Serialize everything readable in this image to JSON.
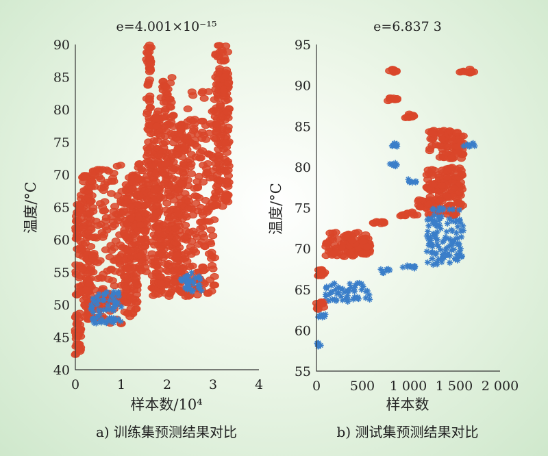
{
  "captions": [
    "a) 训练集预测结果对比",
    "b) 测试集预测结果对比"
  ],
  "colors": {
    "predicted": "#d9462a",
    "actual": "#3a7ec9"
  },
  "chart_data": [
    {
      "type": "scatter",
      "title": "e=4.001×10⁻¹⁵",
      "xlabel": "样本数/10⁴",
      "ylabel": "温度/°C",
      "xlim": [
        0,
        4
      ],
      "ylim": [
        40,
        90
      ],
      "xticks": [
        0,
        1,
        2,
        3,
        4
      ],
      "yticks": [
        40,
        45,
        50,
        55,
        60,
        65,
        70,
        75,
        80,
        85,
        90
      ],
      "xtick_labels": [
        "0",
        "1",
        "2",
        "3",
        "4"
      ],
      "ytick_labels": [
        "40",
        "45",
        "50",
        "55",
        "60",
        "65",
        "70",
        "75",
        "80",
        "85",
        "90"
      ],
      "series": [
        {
          "marker": "circle",
          "color": "#d9462a",
          "clusters": [
            {
              "x": [
                0,
                0.12
              ],
              "y": [
                42,
                67
              ]
            },
            {
              "x": [
                0.12,
                0.35
              ],
              "y": [
                47,
                70
              ]
            },
            {
              "x": [
                0.35,
                1.05
              ],
              "y": [
                47,
                71.5
              ]
            },
            {
              "x": [
                1.05,
                1.35
              ],
              "y": [
                48,
                70
              ]
            },
            {
              "x": [
                1.35,
                1.55
              ],
              "y": [
                55,
                72
              ]
            },
            {
              "x": [
                1.55,
                1.65
              ],
              "y": [
                66,
                90
              ]
            },
            {
              "x": [
                1.65,
                1.85
              ],
              "y": [
                51,
                80
              ]
            },
            {
              "x": [
                1.85,
                2.15
              ],
              "y": [
                51,
                85
              ]
            },
            {
              "x": [
                2.15,
                2.45
              ],
              "y": [
                51,
                78
              ]
            },
            {
              "x": [
                2.45,
                3.05
              ],
              "y": [
                51,
                83
              ]
            },
            {
              "x": [
                3.05,
                3.35
              ],
              "y": [
                65,
                90
              ]
            }
          ]
        },
        {
          "marker": "star",
          "color": "#3a7ec9",
          "clusters": [
            {
              "x": [
                0.3,
                1.0
              ],
              "y": [
                47,
                52
              ]
            },
            {
              "x": [
                2.3,
                2.8
              ],
              "y": [
                52,
                55
              ]
            }
          ]
        }
      ]
    },
    {
      "type": "scatter",
      "title": "e=6.837 3",
      "xlabel": "样本数",
      "ylabel": "温度/°C",
      "xlim": [
        0,
        2000
      ],
      "ylim": [
        55,
        95
      ],
      "xticks": [
        0,
        500,
        1000,
        1500,
        2000
      ],
      "yticks": [
        55,
        60,
        65,
        70,
        75,
        80,
        85,
        90,
        95
      ],
      "xtick_labels": [
        "0",
        "500",
        "1 000",
        "1 500",
        "2 000"
      ],
      "ytick_labels": [
        "55",
        "60",
        "65",
        "70",
        "75",
        "80",
        "85",
        "90",
        "95"
      ],
      "series": [
        {
          "marker": "circle",
          "color": "#d9462a",
          "clusters": [
            {
              "x": [
                0,
                90
              ],
              "y": [
                66.5,
                67.5
              ]
            },
            {
              "x": [
                0,
                80
              ],
              "y": [
                62.5,
                63.5
              ]
            },
            {
              "x": [
                100,
                580
              ],
              "y": [
                69,
                72
              ]
            },
            {
              "x": [
                360,
                600
              ],
              "y": [
                70,
                71
              ]
            },
            {
              "x": [
                620,
                760
              ],
              "y": [
                73,
                73.5
              ]
            },
            {
              "x": [
                780,
                880
              ],
              "y": [
                91.5,
                92
              ]
            },
            {
              "x": [
                780,
                880
              ],
              "y": [
                88,
                88.5
              ]
            },
            {
              "x": [
                900,
                1100
              ],
              "y": [
                74,
                74.5
              ]
            },
            {
              "x": [
                960,
                1060
              ],
              "y": [
                86,
                86.5
              ]
            },
            {
              "x": [
                1100,
                1200
              ],
              "y": [
                75,
                76
              ]
            },
            {
              "x": [
                1200,
                1600
              ],
              "y": [
                74,
                80
              ]
            },
            {
              "x": [
                1230,
                1600
              ],
              "y": [
                81,
                84.5
              ]
            },
            {
              "x": [
                1560,
                1760
              ],
              "y": [
                91.5,
                92
              ]
            }
          ]
        },
        {
          "marker": "star",
          "color": "#3a7ec9",
          "clusters": [
            {
              "x": [
                0,
                60
              ],
              "y": [
                58,
                58.5
              ]
            },
            {
              "x": [
                0,
                100
              ],
              "y": [
                61.5,
                62
              ]
            },
            {
              "x": [
                100,
                580
              ],
              "y": [
                63.5,
                66
              ]
            },
            {
              "x": [
                700,
                840
              ],
              "y": [
                67,
                67.5
              ]
            },
            {
              "x": [
                800,
                880
              ],
              "y": [
                82.5,
                83
              ]
            },
            {
              "x": [
                800,
                880
              ],
              "y": [
                80,
                80.5
              ]
            },
            {
              "x": [
                880,
                1100
              ],
              "y": [
                67.5,
                68
              ]
            },
            {
              "x": [
                1000,
                1100
              ],
              "y": [
                78,
                78.5
              ]
            },
            {
              "x": [
                1200,
                1600
              ],
              "y": [
                68,
                75
              ]
            },
            {
              "x": [
                1600,
                1760
              ],
              "y": [
                82.5,
                83
              ]
            }
          ]
        }
      ]
    }
  ]
}
